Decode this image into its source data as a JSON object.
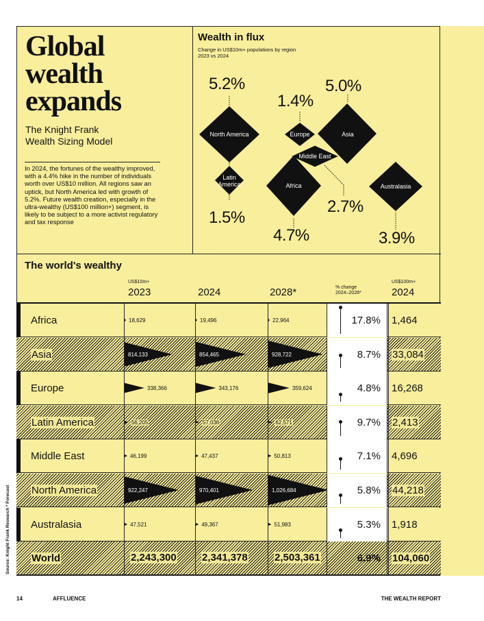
{
  "title": "Global\nwealth\nexpands",
  "subtitle": "The Knight Frank\nWealth Sizing Model",
  "body": "In 2024, the fortunes of the wealthy improved, with a 4.4% hike in the number of individuals worth over US$10 million. All regions saw an uptick, but North America led with growth of 5.2%. Future wealth creation, especially in the ultra-wealthy (US$100 million+) segment, is likely to be subject to a more activist regulatory and tax response",
  "flux": {
    "title": "Wealth in flux",
    "subtitle": "Change in US$10m+ populations by region\n2023 vs 2024",
    "regions": [
      {
        "label": "North America",
        "change": "5.2%"
      },
      {
        "label": "Europe",
        "change": "1.4%"
      },
      {
        "label": "Asia",
        "change": "5.0%"
      },
      {
        "label": "Middle East",
        "change": "2.7%"
      },
      {
        "label": "Latin\nAmerica",
        "change": "1.5%"
      },
      {
        "label": "Africa",
        "change": "4.7%"
      },
      {
        "label": "Australasia",
        "change": "3.9%"
      }
    ]
  },
  "table": {
    "title": "The world's wealthy",
    "headers": {
      "unit_10m": "US$10m+",
      "y2023": "2023",
      "y2024": "2024",
      "y2028": "2028*",
      "pct_change": "% change\n2024–2028*",
      "unit_100m": "US$100m+",
      "y2024_100m": "2024"
    },
    "rows": [
      {
        "region": "Africa",
        "v2023": "18,629",
        "v2024": "19,496",
        "v2028": "22,964",
        "change": "17.8%",
        "uhnw": "1,464"
      },
      {
        "region": "Asia",
        "v2023": "814,133",
        "v2024": "854,465",
        "v2028": "928,722",
        "change": "8.7%",
        "uhnw": "33,084"
      },
      {
        "region": "Europe",
        "v2023": "338,366",
        "v2024": "343,176",
        "v2028": "359,624",
        "change": "4.8%",
        "uhnw": "16,268"
      },
      {
        "region": "Latin America",
        "v2023": "56,205",
        "v2024": "57,036",
        "v2028": "62,571",
        "change": "9.7%",
        "uhnw": "2,413"
      },
      {
        "region": "Middle East",
        "v2023": "46,199",
        "v2024": "47,437",
        "v2028": "50,813",
        "change": "7.1%",
        "uhnw": "4,696"
      },
      {
        "region": "North America",
        "v2023": "922,247",
        "v2024": "970,401",
        "v2028": "1,026,684",
        "change": "5.8%",
        "uhnw": "44,218"
      },
      {
        "region": "Australasia",
        "v2023": "47,521",
        "v2024": "49,367",
        "v2028": "51,983",
        "change": "5.3%",
        "uhnw": "1,918"
      },
      {
        "region": "World",
        "v2023": "2,243,300",
        "v2024": "2,341,378",
        "v2028": "2,503,361",
        "change": "6.9%",
        "uhnw": "104,060"
      }
    ]
  },
  "source": "Source: Knight Frank Research   * Forecast",
  "footer": {
    "page": "14",
    "section": "AFFLUENCE",
    "publication": "THE WEALTH REPORT"
  }
}
